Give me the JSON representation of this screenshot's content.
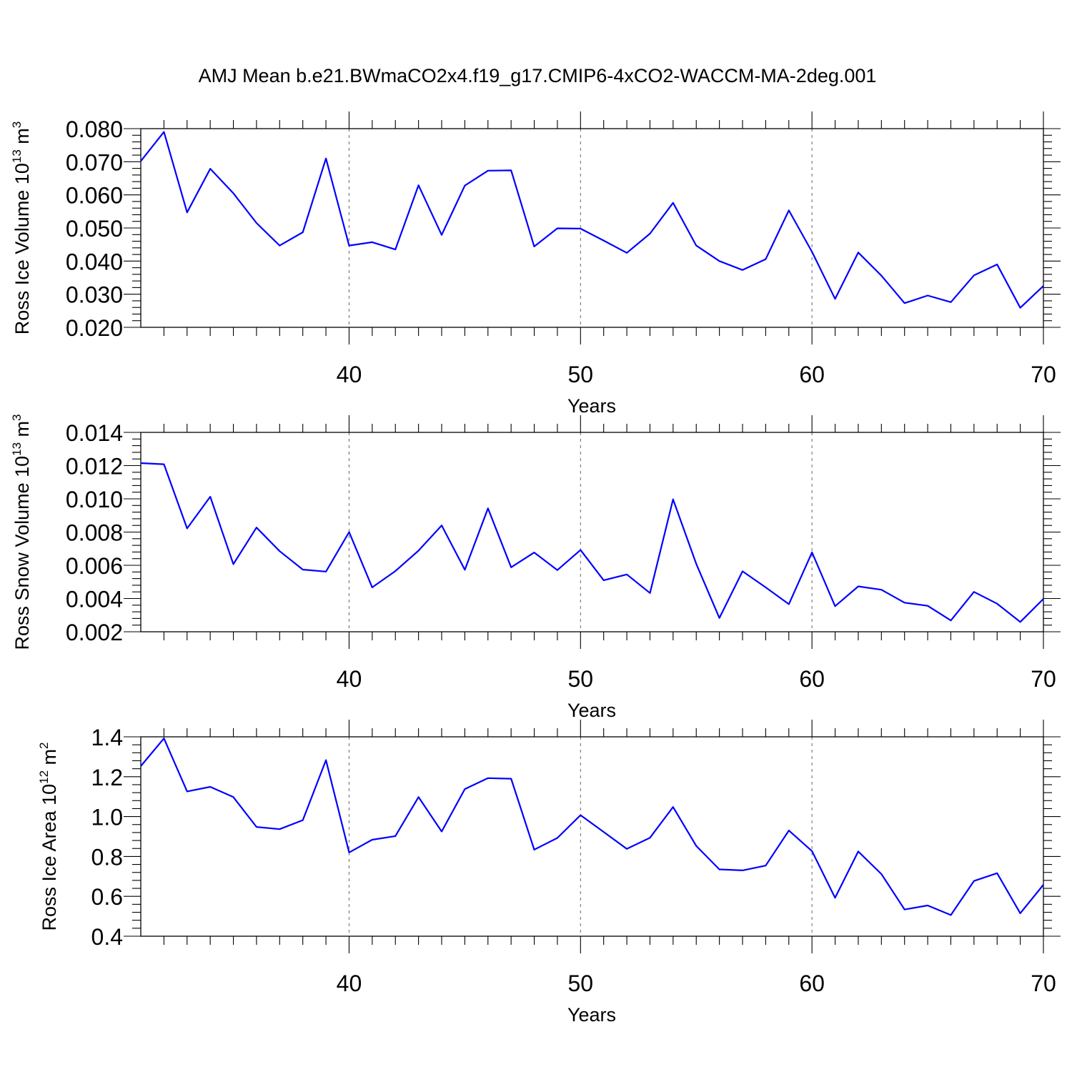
{
  "title": "AMJ Mean b.e21.BWmaCO2x4.f19_g17.CMIP6-4xCO2-WACCM-MA-2deg.001",
  "chart_data": [
    {
      "type": "line",
      "xlabel": "Years",
      "ylabel": {
        "main": "Ross Ice Volume 10",
        "sup": "13",
        "unit": " m",
        "unitsup": "3"
      },
      "xlim": [
        31,
        70
      ],
      "ylim": [
        0.02,
        0.08
      ],
      "x_ticks": [
        40,
        50,
        60,
        70
      ],
      "x_ticks_labels": [
        "40",
        "50",
        "60",
        "70"
      ],
      "y_ticks": [
        0.02,
        0.03,
        0.04,
        0.05,
        0.06,
        0.07,
        0.08
      ],
      "y_ticks_labels": [
        "0.020",
        "0.030",
        "0.040",
        "0.050",
        "0.060",
        "0.070",
        "0.080"
      ],
      "x_minor_step": 1,
      "y_minor_step": 0.002,
      "grid_x": [
        40,
        50,
        60
      ],
      "color": "#0000ff",
      "x": [
        31,
        32,
        33,
        34,
        35,
        36,
        37,
        38,
        39,
        40,
        41,
        42,
        43,
        44,
        45,
        46,
        47,
        48,
        49,
        50,
        51,
        52,
        53,
        54,
        55,
        56,
        57,
        58,
        59,
        60,
        61,
        62,
        63,
        64,
        65,
        66,
        67,
        68,
        69,
        70
      ],
      "values": [
        0.0702,
        0.079,
        0.0547,
        0.0679,
        0.0605,
        0.0515,
        0.0447,
        0.0487,
        0.071,
        0.0447,
        0.0457,
        0.0435,
        0.0629,
        0.0479,
        0.0628,
        0.0673,
        0.0674,
        0.0444,
        0.0499,
        0.0498,
        0.0462,
        0.0425,
        0.0483,
        0.0576,
        0.0447,
        0.04,
        0.0373,
        0.0406,
        0.0553,
        0.0428,
        0.0286,
        0.0426,
        0.0356,
        0.0273,
        0.0296,
        0.0276,
        0.0357,
        0.039,
        0.0259,
        0.0325
      ]
    },
    {
      "type": "line",
      "xlabel": "Years",
      "ylabel": {
        "main": "Ross Snow Volume 10",
        "sup": "13",
        "unit": " m",
        "unitsup": "3"
      },
      "xlim": [
        31,
        70
      ],
      "ylim": [
        0.002,
        0.014
      ],
      "x_ticks": [
        40,
        50,
        60,
        70
      ],
      "x_ticks_labels": [
        "40",
        "50",
        "60",
        "70"
      ],
      "y_ticks": [
        0.002,
        0.004,
        0.006,
        0.008,
        0.01,
        0.012,
        0.014
      ],
      "y_ticks_labels": [
        "0.002",
        "0.004",
        "0.006",
        "0.008",
        "0.010",
        "0.012",
        "0.014"
      ],
      "x_minor_step": 1,
      "y_minor_step": 0.0004,
      "grid_x": [
        40,
        50,
        60
      ],
      "color": "#0000ff",
      "x": [
        31,
        32,
        33,
        34,
        35,
        36,
        37,
        38,
        39,
        40,
        41,
        42,
        43,
        44,
        45,
        46,
        47,
        48,
        49,
        50,
        51,
        52,
        53,
        54,
        55,
        56,
        57,
        58,
        59,
        60,
        61,
        62,
        63,
        64,
        65,
        66,
        67,
        68,
        69,
        70
      ],
      "values": [
        0.01215,
        0.01208,
        0.00822,
        0.01013,
        0.00607,
        0.00827,
        0.00685,
        0.00574,
        0.00562,
        0.008,
        0.00467,
        0.00565,
        0.00688,
        0.0084,
        0.00573,
        0.00943,
        0.00588,
        0.00677,
        0.00571,
        0.00692,
        0.0051,
        0.00545,
        0.00433,
        0.00997,
        0.00609,
        0.00283,
        0.00564,
        0.00467,
        0.00366,
        0.00678,
        0.00354,
        0.00473,
        0.00453,
        0.00375,
        0.00356,
        0.00268,
        0.0044,
        0.00369,
        0.00259,
        0.00398
      ]
    },
    {
      "type": "line",
      "xlabel": "Years",
      "ylabel": {
        "main": "Ross Ice Area 10",
        "sup": "12",
        "unit": " m",
        "unitsup": "2"
      },
      "xlim": [
        31,
        70
      ],
      "ylim": [
        0.4,
        1.4
      ],
      "x_ticks": [
        40,
        50,
        60,
        70
      ],
      "x_ticks_labels": [
        "40",
        "50",
        "60",
        "70"
      ],
      "y_ticks": [
        0.4,
        0.6,
        0.8,
        1.0,
        1.2,
        1.4
      ],
      "y_ticks_labels": [
        "0.4",
        "0.6",
        "0.8",
        "1.0",
        "1.2",
        "1.4"
      ],
      "x_minor_step": 1,
      "y_minor_step": 0.04,
      "grid_x": [
        40,
        50,
        60
      ],
      "color": "#0000ff",
      "x": [
        31,
        32,
        33,
        34,
        35,
        36,
        37,
        38,
        39,
        40,
        41,
        42,
        43,
        44,
        45,
        46,
        47,
        48,
        49,
        50,
        51,
        52,
        53,
        54,
        55,
        56,
        57,
        58,
        59,
        60,
        61,
        62,
        63,
        64,
        65,
        66,
        67,
        68,
        69,
        70
      ],
      "values": [
        1.253,
        1.392,
        1.126,
        1.149,
        1.098,
        0.948,
        0.937,
        0.982,
        1.283,
        0.82,
        0.884,
        0.902,
        1.098,
        0.925,
        1.138,
        1.193,
        1.19,
        0.834,
        0.893,
        1.007,
        0.923,
        0.838,
        0.894,
        1.048,
        0.853,
        0.735,
        0.73,
        0.754,
        0.93,
        0.827,
        0.593,
        0.825,
        0.712,
        0.534,
        0.554,
        0.506,
        0.677,
        0.716,
        0.515,
        0.658
      ]
    }
  ]
}
